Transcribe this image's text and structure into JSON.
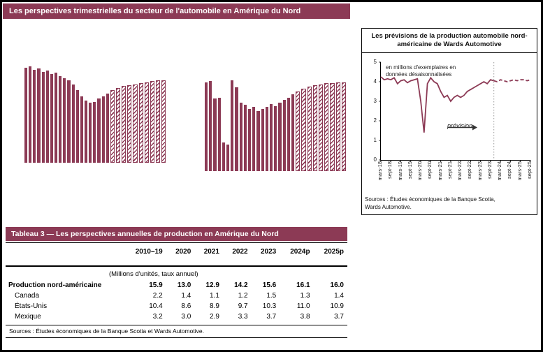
{
  "page": {
    "header": "Les perspectives trimestrielles du secteur de l'automobile en Amérique du Nord"
  },
  "accent_color": "#8c3a55",
  "chart_data": [
    {
      "id": "left-bar-chart-1",
      "type": "bar",
      "values": [
        4.6,
        4.65,
        4.5,
        4.55,
        4.4,
        4.45,
        4.3,
        4.35,
        4.2,
        4.1,
        4.0,
        3.8,
        3.5,
        3.2,
        3.0,
        2.9,
        2.95,
        3.1,
        3.2,
        3.35,
        3.5,
        3.6,
        3.7,
        3.75,
        3.8,
        3.85,
        3.9,
        3.95,
        4.0,
        4.0
      ],
      "forecast_start_index": 20,
      "forecast_hatched": true,
      "ylim": [
        0,
        5
      ]
    },
    {
      "id": "left-bar-chart-2",
      "type": "bar",
      "values": [
        4.3,
        4.35,
        3.5,
        3.55,
        1.4,
        1.3,
        4.4,
        4.05,
        3.3,
        3.2,
        3.0,
        3.1,
        2.9,
        3.0,
        3.1,
        3.25,
        3.15,
        3.3,
        3.45,
        3.55,
        3.7,
        3.85,
        4.0,
        4.1,
        4.15,
        4.2,
        4.25,
        4.25,
        4.3,
        4.3
      ],
      "forecast_start_index": 21,
      "forecast_hatched": true,
      "ylim": [
        0,
        5
      ]
    },
    {
      "id": "wards-line-chart",
      "type": "line",
      "title": "Les prévisions de la production automobile nord-américaine de Wards Automotive",
      "note": "en millions d'exemplaires en données désaisonnalisées",
      "annotation": "prévision",
      "x_labels": [
        "mars-18",
        "sept-18",
        "mars-19",
        "sept-19",
        "mars-20",
        "sept-20",
        "mars-21",
        "sept-21",
        "mars-22",
        "sept-22",
        "mars-23",
        "sept-23",
        "mars-24",
        "sept-24",
        "mars-25",
        "sept-25"
      ],
      "values": [
        4.25,
        4.1,
        4.15,
        4.1,
        4.2,
        3.9,
        4.05,
        4.1,
        3.95,
        4.05,
        4.1,
        4.15,
        3.0,
        1.4,
        3.9,
        4.2,
        4.0,
        3.9,
        3.5,
        3.2,
        3.3,
        3.0,
        3.2,
        3.3,
        3.2,
        3.3,
        3.5,
        3.6,
        3.7,
        3.8,
        3.9,
        4.0,
        3.9,
        4.1,
        4.05,
        4.0,
        4.1,
        4.05,
        4.0,
        4.05,
        4.1,
        4.05,
        4.1,
        4.1,
        4.05,
        4.1
      ],
      "forecast_start_index": 34,
      "ylim": [
        0,
        5
      ],
      "yticks": [
        0,
        1,
        2,
        3,
        4,
        5
      ],
      "legend": "none",
      "sources": "Sources : Études économiques de la Banque Scotia, Wards Automotive."
    }
  ],
  "table3": {
    "title": "Tableau 3 — Les perspectives annuelles de production en Amérique du Nord",
    "columns": [
      "2010–19",
      "2020",
      "2021",
      "2022",
      "2023",
      "2024p",
      "2025p"
    ],
    "units_note": "(Millions d'unités, taux annuel)",
    "rows": [
      {
        "label": "Production nord-américaine",
        "values": [
          "15.9",
          "13.0",
          "12.9",
          "14.2",
          "15.6",
          "16.1",
          "16.0"
        ]
      },
      {
        "label": "Canada",
        "values": [
          "2.2",
          "1.4",
          "1.1",
          "1.2",
          "1.5",
          "1.3",
          "1.4"
        ]
      },
      {
        "label": "États-Unis",
        "values": [
          "10.4",
          "8.6",
          "8.9",
          "9.7",
          "10.3",
          "11.0",
          "10.9"
        ]
      },
      {
        "label": "Mexique",
        "values": [
          "3.2",
          "3.0",
          "2.9",
          "3.3",
          "3.7",
          "3.8",
          "3.7"
        ]
      }
    ],
    "sources": "Sources : Études économiques de la Banque Scotia et Wards Automotive."
  }
}
